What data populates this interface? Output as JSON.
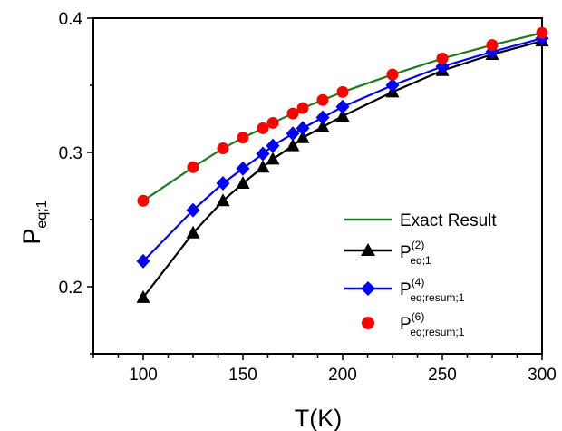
{
  "chart_data": {
    "type": "line",
    "xlabel": "T(K)",
    "ylabel": {
      "main": "P",
      "sub": "eq;1"
    },
    "xlim": [
      75,
      300
    ],
    "ylim": [
      0.15,
      0.4
    ],
    "xticks": [
      100,
      150,
      200,
      250,
      300
    ],
    "yticks": [
      0.2,
      0.3,
      0.4
    ],
    "xtick_labels": [
      "100",
      "150",
      "200",
      "250",
      "300"
    ],
    "ytick_labels": [
      "0.2",
      "0.3",
      "0.4"
    ],
    "legend_position": "bottom-right",
    "series": [
      {
        "name": "Exact Result",
        "color": "#1f7a1f",
        "marker": "none",
        "x": [
          100,
          125,
          140,
          150,
          160,
          165,
          175,
          180,
          190,
          200,
          225,
          250,
          275,
          300
        ],
        "y": [
          0.264,
          0.289,
          0.303,
          0.311,
          0.318,
          0.322,
          0.329,
          0.333,
          0.339,
          0.345,
          0.358,
          0.37,
          0.38,
          0.389
        ]
      },
      {
        "name": "P(2)eq;1",
        "label": {
          "main": "P",
          "sup": "(2)",
          "sub": "eq;1"
        },
        "color": "#000000",
        "marker": "triangle",
        "x": [
          100,
          125,
          140,
          150,
          160,
          165,
          175,
          180,
          190,
          200,
          225,
          250,
          275,
          300
        ],
        "y": [
          0.192,
          0.24,
          0.264,
          0.277,
          0.289,
          0.295,
          0.305,
          0.311,
          0.319,
          0.327,
          0.345,
          0.361,
          0.373,
          0.383
        ]
      },
      {
        "name": "P(4)eq;resum;1",
        "label": {
          "main": "P",
          "sup": "(4)",
          "sub": "eq;resum;1"
        },
        "color": "#0000ff",
        "marker": "diamond",
        "x": [
          100,
          125,
          140,
          150,
          160,
          165,
          175,
          180,
          190,
          200,
          225,
          250,
          275,
          300
        ],
        "y": [
          0.219,
          0.257,
          0.277,
          0.288,
          0.299,
          0.305,
          0.314,
          0.318,
          0.326,
          0.334,
          0.35,
          0.364,
          0.375,
          0.385
        ]
      },
      {
        "name": "P(6)eq;resum;1",
        "label": {
          "main": "P",
          "sup": "(6)",
          "sub": "eq;resum;1"
        },
        "color": "#ff0000",
        "marker": "circle",
        "x": [
          100,
          125,
          140,
          150,
          160,
          165,
          175,
          180,
          190,
          200,
          225,
          250,
          275,
          300
        ],
        "y": [
          0.264,
          0.289,
          0.303,
          0.311,
          0.318,
          0.322,
          0.329,
          0.333,
          0.339,
          0.345,
          0.358,
          0.37,
          0.38,
          0.389
        ]
      }
    ]
  }
}
